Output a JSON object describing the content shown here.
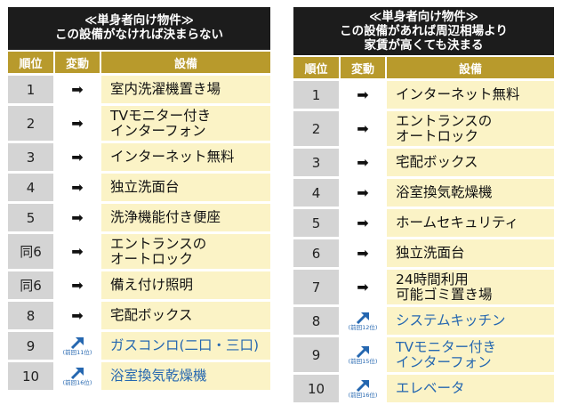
{
  "left": {
    "title_line1": "≪単身者向け物件≫",
    "title_line2": "この設備がなければ決まらない",
    "headers": {
      "rank": "順位",
      "change": "変動",
      "feature": "設備"
    },
    "rows": [
      {
        "rank": "1",
        "change": "same",
        "prev": "",
        "feature": "室内洗濯機置き場"
      },
      {
        "rank": "2",
        "change": "same",
        "prev": "",
        "feature": "TVモニター付き\nインターフォン"
      },
      {
        "rank": "3",
        "change": "same",
        "prev": "",
        "feature": "インターネット無料"
      },
      {
        "rank": "4",
        "change": "same",
        "prev": "",
        "feature": "独立洗面台"
      },
      {
        "rank": "5",
        "change": "same",
        "prev": "",
        "feature": "洗浄機能付き便座"
      },
      {
        "rank": "同6",
        "change": "same",
        "prev": "",
        "feature": "エントランスの\nオートロック"
      },
      {
        "rank": "同6",
        "change": "same",
        "prev": "",
        "feature": "備え付け照明"
      },
      {
        "rank": "8",
        "change": "same",
        "prev": "",
        "feature": "宅配ボックス"
      },
      {
        "rank": "9",
        "change": "up",
        "prev": "(前回11位)",
        "feature": "ガスコンロ(二口・三口)"
      },
      {
        "rank": "10",
        "change": "up",
        "prev": "(前回16位)",
        "feature": "浴室換気乾燥機"
      }
    ]
  },
  "right": {
    "title_line1": "≪単身者向け物件≫",
    "title_line2": "この設備があれば周辺相場より",
    "title_line3": "家賃が高くても決まる",
    "headers": {
      "rank": "順位",
      "change": "変動",
      "feature": "設備"
    },
    "rows": [
      {
        "rank": "1",
        "change": "same",
        "prev": "",
        "feature": "インターネット無料"
      },
      {
        "rank": "2",
        "change": "same",
        "prev": "",
        "feature": "エントランスの\nオートロック"
      },
      {
        "rank": "3",
        "change": "same",
        "prev": "",
        "feature": "宅配ボックス"
      },
      {
        "rank": "4",
        "change": "same",
        "prev": "",
        "feature": "浴室換気乾燥機"
      },
      {
        "rank": "5",
        "change": "same",
        "prev": "",
        "feature": "ホームセキュリティ"
      },
      {
        "rank": "6",
        "change": "same",
        "prev": "",
        "feature": "独立洗面台"
      },
      {
        "rank": "7",
        "change": "same",
        "prev": "",
        "feature": "24時間利用\n可能ゴミ置き場"
      },
      {
        "rank": "8",
        "change": "up",
        "prev": "(前回12位)",
        "feature": "システムキッチン"
      },
      {
        "rank": "9",
        "change": "up",
        "prev": "(前回15位)",
        "feature": "TVモニター付き\nインターフォン"
      },
      {
        "rank": "10",
        "change": "up",
        "prev": "(前回16位)",
        "feature": "エレベータ"
      }
    ]
  },
  "colors": {
    "header_bg": "#b89a2c",
    "title_bg": "#1c1c1c",
    "rank_bg": "#d4d4d4",
    "feature_bg": "#fbf3c6",
    "up_text": "#2567b0"
  },
  "icons": {
    "same": "right-arrow-icon",
    "up": "up-right-arrow-icon"
  }
}
